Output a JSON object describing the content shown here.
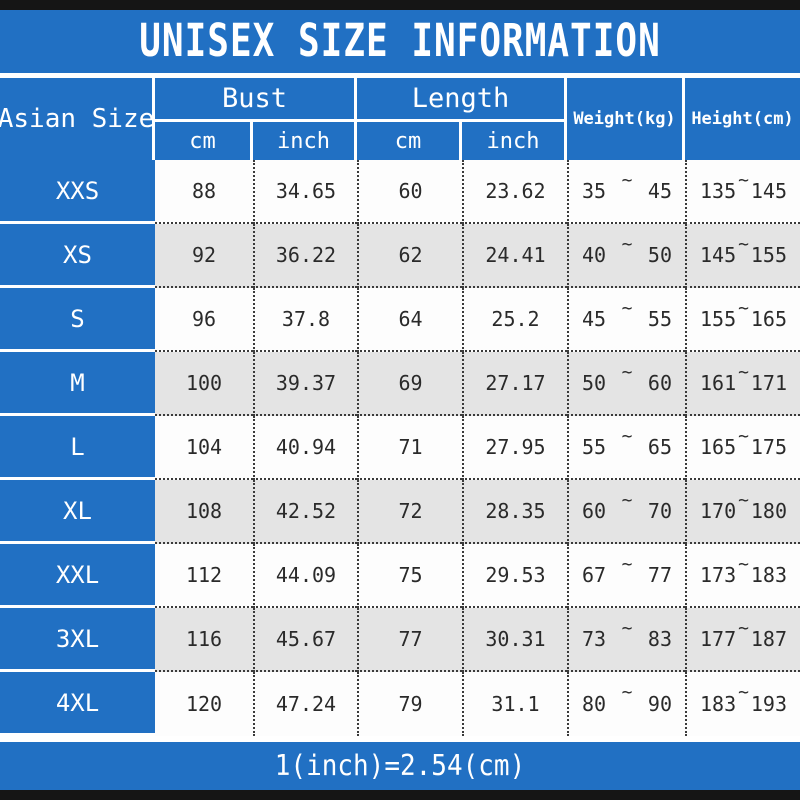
{
  "title": "UNISEX SIZE INFORMATION",
  "table": {
    "corner_header": "Asian Size",
    "group_headers": {
      "bust": "Bust",
      "length": "Length"
    },
    "unit_headers": {
      "bust_cm": "cm",
      "bust_inch": "inch",
      "length_cm": "cm",
      "length_inch": "inch"
    },
    "single_headers": {
      "weight": "Weight(kg)",
      "height": "Height(cm)"
    }
  },
  "symbols": {
    "tilde": "~"
  },
  "rows": [
    {
      "size": "XXS",
      "bust_cm": "88",
      "bust_inch": "34.65",
      "length_cm": "60",
      "length_inch": "23.62",
      "weight_min": "35",
      "weight_max": "45",
      "height_min": "135",
      "height_max": "145"
    },
    {
      "size": "XS",
      "bust_cm": "92",
      "bust_inch": "36.22",
      "length_cm": "62",
      "length_inch": "24.41",
      "weight_min": "40",
      "weight_max": "50",
      "height_min": "145",
      "height_max": "155"
    },
    {
      "size": "S",
      "bust_cm": "96",
      "bust_inch": "37.8",
      "length_cm": "64",
      "length_inch": "25.2",
      "weight_min": "45",
      "weight_max": "55",
      "height_min": "155",
      "height_max": "165"
    },
    {
      "size": "M",
      "bust_cm": "100",
      "bust_inch": "39.37",
      "length_cm": "69",
      "length_inch": "27.17",
      "weight_min": "50",
      "weight_max": "60",
      "height_min": "161",
      "height_max": "171"
    },
    {
      "size": "L",
      "bust_cm": "104",
      "bust_inch": "40.94",
      "length_cm": "71",
      "length_inch": "27.95",
      "weight_min": "55",
      "weight_max": "65",
      "height_min": "165",
      "height_max": "175"
    },
    {
      "size": "XL",
      "bust_cm": "108",
      "bust_inch": "42.52",
      "length_cm": "72",
      "length_inch": "28.35",
      "weight_min": "60",
      "weight_max": "70",
      "height_min": "170",
      "height_max": "180"
    },
    {
      "size": "XXL",
      "bust_cm": "112",
      "bust_inch": "44.09",
      "length_cm": "75",
      "length_inch": "29.53",
      "weight_min": "67",
      "weight_max": "77",
      "height_min": "173",
      "height_max": "183"
    },
    {
      "size": "3XL",
      "bust_cm": "116",
      "bust_inch": "45.67",
      "length_cm": "77",
      "length_inch": "30.31",
      "weight_min": "73",
      "weight_max": "83",
      "height_min": "177",
      "height_max": "187"
    },
    {
      "size": "4XL",
      "bust_cm": "120",
      "bust_inch": "47.24",
      "length_cm": "79",
      "length_inch": "31.1",
      "weight_min": "80",
      "weight_max": "90",
      "height_min": "183",
      "height_max": "193"
    }
  ],
  "footer": {
    "note": "1(inch)=2.54(cm)"
  },
  "colors": {
    "accent_blue": "#2170c3",
    "row_alt_gray": "#e4e4e4",
    "row_white": "#fdfdfd",
    "bar_black": "#151515",
    "header_text": "#ffffff",
    "data_text": "#2a2a2a"
  }
}
